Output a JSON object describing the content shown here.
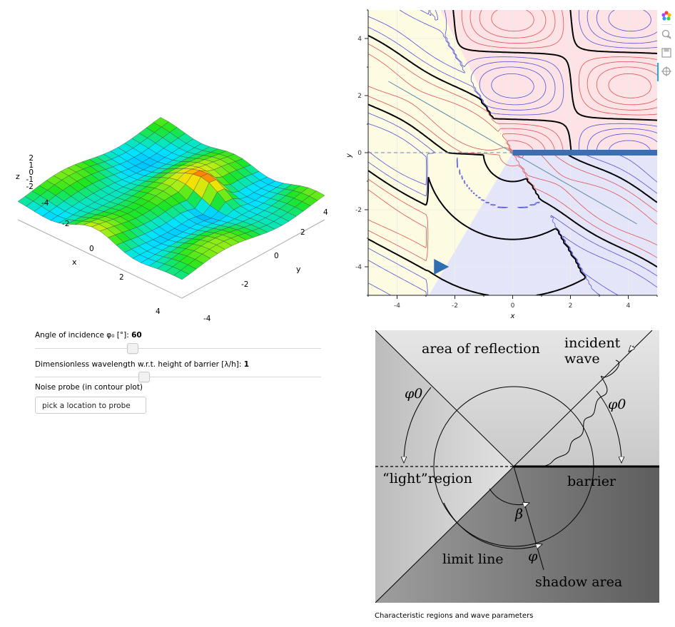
{
  "surface_plot": {
    "axis_x_label": "x",
    "axis_y_label": "y",
    "axis_z_label": "z",
    "z_ticks": [
      "2",
      "1",
      "0",
      "-1",
      "-2"
    ],
    "x_ticks": [
      "-4",
      "-2",
      "0",
      "2",
      "4"
    ],
    "y_ticks": [
      "4",
      "2",
      "0",
      "-2",
      "-4"
    ]
  },
  "controls": {
    "angle": {
      "label": "Angle of incidence φ₀ [°]:",
      "value": "60",
      "fraction": 0.34
    },
    "wavelength": {
      "label": "Dimensionless wavelength w.r.t. height of barrier [λ/h]:",
      "value": "1",
      "fraction": 0.38
    },
    "probe": {
      "label": "Noise probe (in contour plot)",
      "placeholder": "pick a location to probe"
    }
  },
  "chart_data": {
    "type": "contour",
    "xlabel": "x",
    "ylabel": "y",
    "xlim": [
      -5,
      5
    ],
    "ylim": [
      -5,
      5
    ],
    "x_ticks": [
      "-4",
      "-2",
      "0",
      "2",
      "4"
    ],
    "y_ticks": [
      "4",
      "2",
      "0",
      "-2",
      "-4"
    ],
    "regions": {
      "reflection_color": "#fde3e6",
      "light_color": "#fdfbe2",
      "shadow_color": "#e4e5f8"
    },
    "barrier": {
      "x_start": 0,
      "x_end": 5,
      "y": 0,
      "color": "#3a6fb5"
    },
    "source_marker": {
      "x": -2.5,
      "y": -4,
      "color": "#2f6eb0"
    },
    "contour_colors": {
      "positive": "#e05050",
      "negative": "#5050d8",
      "zero": "#000000"
    }
  },
  "toolbar": {
    "icons": [
      "bokeh-logo-icon",
      "wheel-zoom-icon",
      "save-icon",
      "hover-icon"
    ]
  },
  "diagram": {
    "area_of_reflection": "area of reflection",
    "incident_wave_1": "incident",
    "incident_wave_2": "wave",
    "phi0_left": "φ0",
    "phi0_right": "φ0",
    "light_region": "“light”region",
    "barrier": "barrier",
    "beta": "β",
    "limit_line": "limit line",
    "phi": "φ",
    "shadow_area": "shadow area"
  },
  "caption": "Characteristic regions and wave parameters"
}
